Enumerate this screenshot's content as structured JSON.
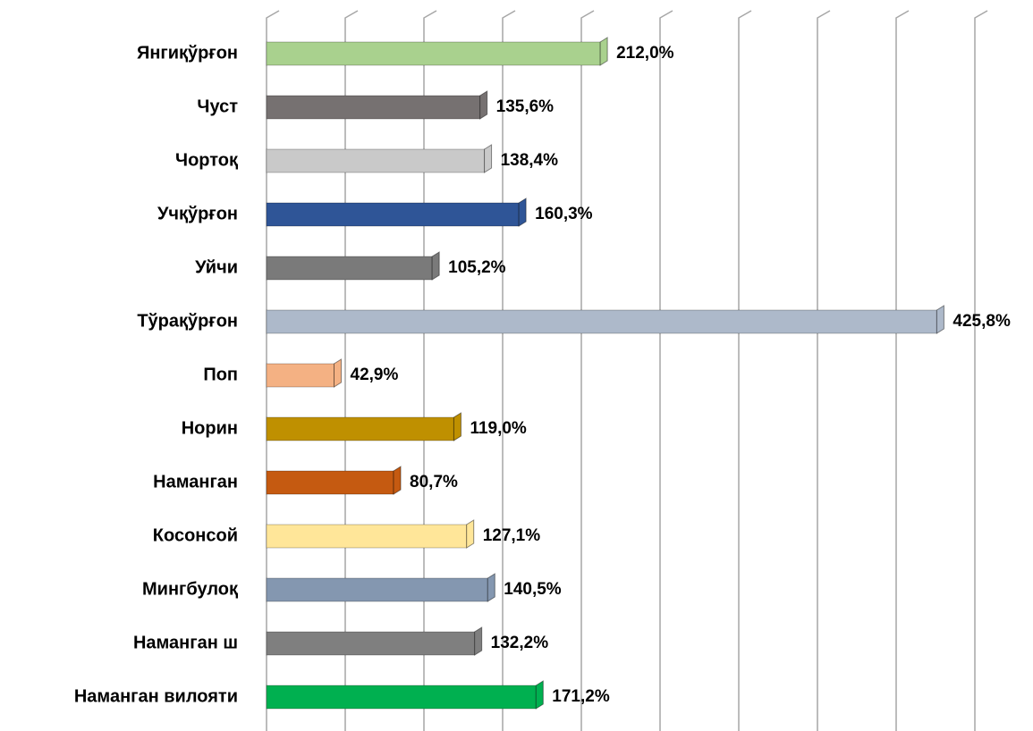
{
  "chart_data": {
    "type": "barh",
    "categories": [
      "Янгиқўрғон",
      "Чуст",
      "Чортоқ",
      "Учқўрғон",
      "Уйчи",
      "Тўрақўрғон",
      "Поп",
      "Норин",
      "Наманган",
      "Косонсой",
      "Мингбулоқ",
      "Наманган ш",
      "Наманган вилояти"
    ],
    "values": [
      212.0,
      135.6,
      138.4,
      160.3,
      105.2,
      425.8,
      42.9,
      119.0,
      80.7,
      127.1,
      140.5,
      132.2,
      171.2
    ],
    "value_labels": [
      "212,0%",
      "135,6%",
      "138,4%",
      "160,3%",
      "105,2%",
      "425,8%",
      "42,9%",
      "119,0%",
      "80,7%",
      "127,1%",
      "140,5%",
      "132,2%",
      "171,2%"
    ],
    "colors": [
      "#a9d18e",
      "#767171",
      "#c9c9c9",
      "#2f5597",
      "#7a7a7a",
      "#adb9ca",
      "#f4b183",
      "#bf9000",
      "#c55a11",
      "#ffe699",
      "#8497b0",
      "#7f7f7f",
      "#00b050"
    ],
    "xlim": [
      0,
      450
    ],
    "xticks": [
      0,
      50,
      100,
      150,
      200,
      250,
      300,
      350,
      400,
      450
    ],
    "grid": true
  }
}
